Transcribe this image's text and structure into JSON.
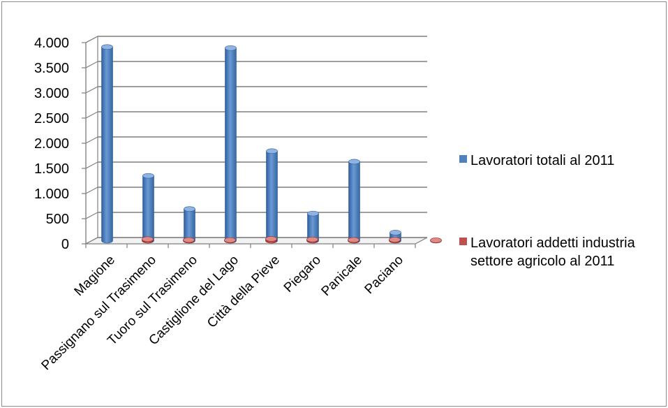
{
  "chart_data": {
    "type": "bar",
    "title": "",
    "xlabel": "",
    "ylabel": "",
    "ylim": [
      0,
      4000
    ],
    "yticks": [
      0,
      500,
      1000,
      1500,
      2000,
      2500,
      3000,
      3500,
      4000
    ],
    "ytick_labels": [
      "0",
      "500",
      "1.000",
      "1.500",
      "2.000",
      "2.500",
      "3.000",
      "3.500",
      "4.000"
    ],
    "grid": true,
    "legend_position": "right",
    "categories": [
      "Magione",
      "Passignano sul Trasimeno",
      "Tuoro sul Trasimeno",
      "Castiglione del Lago",
      "Città della Pieve",
      "Piegaro",
      "Panicale",
      "Paciano"
    ],
    "series": [
      {
        "name": "Lavoratori totali al 2011",
        "color": "#4f81bd",
        "values": [
          3850,
          1290,
          630,
          3830,
          1780,
          540,
          1570,
          160
        ]
      },
      {
        "name": "Lavoratori addetti industria settore agricolo al 2011",
        "color": "#c0504d",
        "values": [
          30,
          15,
          12,
          35,
          25,
          15,
          20,
          8
        ]
      }
    ],
    "legend_lines": [
      [
        "Lavoratori totali al 2011"
      ],
      [
        "Lavoratori addetti industria",
        "settore agricolo al 2011"
      ]
    ]
  }
}
